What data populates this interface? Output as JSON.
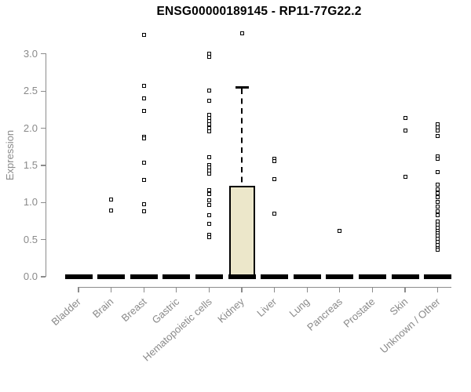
{
  "chart_data": {
    "type": "boxplot",
    "title": "ENSG00000189145 - RP11-77G22.2",
    "ylabel": "Expression",
    "xlabel": "",
    "ylim": [
      0,
      3.3
    ],
    "yticks": [
      3.0,
      2.5,
      2.0,
      1.5,
      1.0,
      0.5,
      0.0
    ],
    "ytick_labels": [
      "3.0",
      "2.5",
      "2.0",
      "1.5",
      "1.0",
      "0.5",
      "0.0"
    ],
    "grid": false,
    "legend": null,
    "categories": [
      "Bladder",
      "Brain",
      "Breast",
      "Gastric",
      "Hematopoietic cells",
      "Kidney",
      "Liver",
      "Lung",
      "Pancreas",
      "Prostate",
      "Skin",
      "Unknown / Other"
    ],
    "series": [
      {
        "category": "Bladder",
        "median": 0,
        "points": []
      },
      {
        "category": "Brain",
        "median": 0,
        "points": [
          1.04,
          0.89
        ]
      },
      {
        "category": "Breast",
        "median": 0,
        "points": [
          3.26,
          2.57,
          2.4,
          2.23,
          1.89,
          1.86,
          1.54,
          1.3,
          0.98,
          0.88
        ]
      },
      {
        "category": "Gastric",
        "median": 0,
        "points": []
      },
      {
        "category": "Hematopoietic cells",
        "median": 0,
        "points": [
          3.0,
          2.96,
          2.51,
          2.37,
          2.18,
          2.14,
          2.1,
          2.05,
          2.0,
          1.96,
          1.61,
          1.51,
          1.47,
          1.43,
          1.39,
          1.17,
          1.11,
          1.03,
          0.97,
          0.83,
          0.71,
          0.56,
          0.53
        ]
      },
      {
        "category": "Kidney",
        "median": 0,
        "points": [
          3.28
        ],
        "box": {
          "q1": 0,
          "q3": 1.22,
          "whisker_high": 2.55
        }
      },
      {
        "category": "Liver",
        "median": 0,
        "points": [
          1.59,
          1.56,
          1.31,
          0.85
        ]
      },
      {
        "category": "Lung",
        "median": 0,
        "points": []
      },
      {
        "category": "Pancreas",
        "median": 0,
        "points": [
          0.62
        ]
      },
      {
        "category": "Prostate",
        "median": 0,
        "points": []
      },
      {
        "category": "Skin",
        "median": 0,
        "points": [
          2.14,
          1.97,
          1.35
        ]
      },
      {
        "category": "Unknown / Other",
        "median": 0,
        "points": [
          2.05,
          2.01,
          1.97,
          1.9,
          1.62,
          1.59,
          1.41,
          1.24,
          1.18,
          1.12,
          1.07,
          1.01,
          0.95,
          0.88,
          0.83,
          0.74,
          0.7,
          0.66,
          0.62,
          0.59,
          0.55,
          0.51,
          0.47,
          0.43,
          0.39,
          0.36
        ]
      }
    ],
    "colors": {
      "box_fill": "#ece7ca",
      "box_border": "#000000",
      "point_stroke": "#000000",
      "point_fill": "#ffffff",
      "median_bar": "#000000",
      "axis": "#8c8c8c",
      "tick_text": "#8a8a8a",
      "title_text": "#000000"
    }
  }
}
